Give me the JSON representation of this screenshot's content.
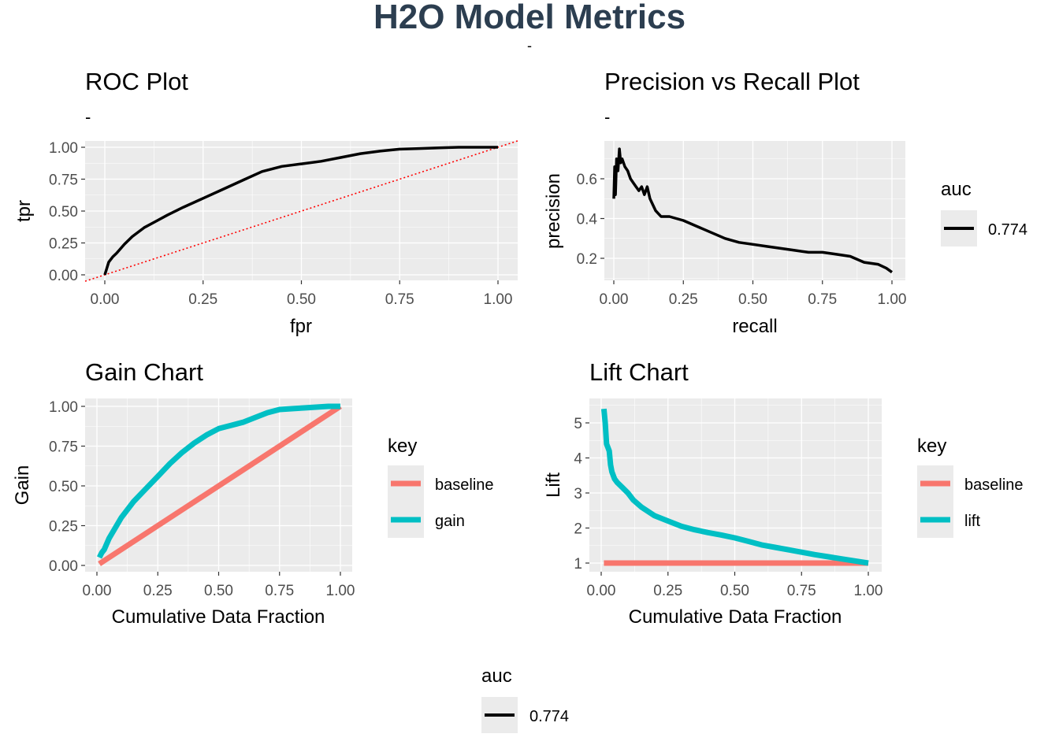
{
  "page": {
    "title": "H2O Model Metrics",
    "subtitle": "-",
    "title_color": "#2c3e50"
  },
  "colors": {
    "panel_bg": "#ebebeb",
    "grid": "#ffffff",
    "tick_text": "#4d4d4d",
    "roc_line": "#000000",
    "diag": "#ff0000",
    "baseline": "#f8766d",
    "gain": "#00bfc4"
  },
  "roc": {
    "title": "ROC Plot",
    "subtitle": "-",
    "xlabel": "fpr",
    "ylabel": "tpr",
    "xticks": [
      "0.00",
      "0.25",
      "0.50",
      "0.75",
      "1.00"
    ],
    "yticks": [
      "0.00",
      "0.25",
      "0.50",
      "0.75",
      "1.00"
    ]
  },
  "pr": {
    "title": "Precision vs Recall Plot",
    "subtitle": "-",
    "xlabel": "recall",
    "ylabel": "precision",
    "xticks": [
      "0.00",
      "0.25",
      "0.50",
      "0.75",
      "1.00"
    ],
    "yticks": [
      "0.2",
      "0.4",
      "0.6"
    ]
  },
  "gain_chart": {
    "title": "Gain Chart",
    "xlabel": "Cumulative Data Fraction",
    "ylabel": "Gain",
    "xticks": [
      "0.00",
      "0.25",
      "0.50",
      "0.75",
      "1.00"
    ],
    "yticks": [
      "0.00",
      "0.25",
      "0.50",
      "0.75",
      "1.00"
    ]
  },
  "lift_chart": {
    "title": "Lift Chart",
    "xlabel": "Cumulative Data Fraction",
    "ylabel": "Lift",
    "xticks": [
      "0.00",
      "0.25",
      "0.50",
      "0.75",
      "1.00"
    ],
    "yticks": [
      "1",
      "2",
      "3",
      "4",
      "5"
    ]
  },
  "legends": {
    "pr_auc": {
      "title": "auc",
      "value": "0.774"
    },
    "gain_key": {
      "title": "key",
      "items": [
        "baseline",
        "gain"
      ]
    },
    "lift_key": {
      "title": "key",
      "items": [
        "baseline",
        "lift"
      ]
    },
    "bottom_auc": {
      "title": "auc",
      "value": "0.774"
    }
  },
  "chart_data": [
    {
      "type": "line",
      "title": "ROC Plot",
      "xlabel": "fpr",
      "ylabel": "tpr",
      "xlim": [
        0,
        1
      ],
      "ylim": [
        0,
        1
      ],
      "series": [
        {
          "name": "0.774",
          "x": [
            0.0,
            0.005,
            0.01,
            0.02,
            0.03,
            0.05,
            0.07,
            0.1,
            0.13,
            0.16,
            0.2,
            0.25,
            0.3,
            0.35,
            0.4,
            0.45,
            0.5,
            0.55,
            0.6,
            0.65,
            0.7,
            0.75,
            0.8,
            0.85,
            0.9,
            0.95,
            1.0
          ],
          "y": [
            0.0,
            0.05,
            0.1,
            0.14,
            0.17,
            0.24,
            0.3,
            0.37,
            0.42,
            0.47,
            0.53,
            0.6,
            0.67,
            0.74,
            0.81,
            0.85,
            0.87,
            0.89,
            0.92,
            0.95,
            0.97,
            0.985,
            0.99,
            0.995,
            1.0,
            1.0,
            1.0
          ]
        }
      ],
      "reference_line": {
        "x": [
          0,
          1
        ],
        "y": [
          0,
          1
        ],
        "style": "dotted"
      }
    },
    {
      "type": "line",
      "title": "Precision vs Recall Plot",
      "xlabel": "recall",
      "ylabel": "precision",
      "xlim": [
        0,
        1
      ],
      "ylim": [
        0.13,
        0.75
      ],
      "legend_title": "auc",
      "series": [
        {
          "name": "0.774",
          "x": [
            0.0,
            0.003,
            0.006,
            0.01,
            0.015,
            0.02,
            0.025,
            0.03,
            0.04,
            0.05,
            0.06,
            0.07,
            0.08,
            0.09,
            0.1,
            0.11,
            0.12,
            0.13,
            0.14,
            0.15,
            0.17,
            0.2,
            0.25,
            0.3,
            0.35,
            0.4,
            0.45,
            0.5,
            0.55,
            0.6,
            0.65,
            0.7,
            0.75,
            0.8,
            0.85,
            0.9,
            0.95,
            0.98,
            1.0
          ],
          "y": [
            0.5,
            0.66,
            0.52,
            0.7,
            0.64,
            0.75,
            0.68,
            0.7,
            0.66,
            0.64,
            0.6,
            0.58,
            0.56,
            0.54,
            0.56,
            0.52,
            0.56,
            0.5,
            0.47,
            0.44,
            0.41,
            0.41,
            0.39,
            0.36,
            0.33,
            0.3,
            0.28,
            0.27,
            0.26,
            0.25,
            0.24,
            0.23,
            0.23,
            0.22,
            0.21,
            0.18,
            0.17,
            0.15,
            0.13
          ]
        }
      ]
    },
    {
      "type": "line",
      "title": "Gain Chart",
      "xlabel": "Cumulative Data Fraction",
      "ylabel": "Gain",
      "xlim": [
        0,
        1
      ],
      "ylim": [
        0,
        1
      ],
      "legend_title": "key",
      "series": [
        {
          "name": "baseline",
          "x": [
            0.01,
            1.0
          ],
          "y": [
            0.01,
            1.0
          ]
        },
        {
          "name": "gain",
          "x": [
            0.01,
            0.02,
            0.03,
            0.05,
            0.1,
            0.15,
            0.2,
            0.25,
            0.3,
            0.35,
            0.4,
            0.45,
            0.5,
            0.55,
            0.6,
            0.65,
            0.7,
            0.75,
            0.8,
            0.85,
            0.9,
            0.95,
            1.0
          ],
          "y": [
            0.05,
            0.08,
            0.1,
            0.17,
            0.3,
            0.4,
            0.48,
            0.56,
            0.64,
            0.71,
            0.77,
            0.82,
            0.86,
            0.88,
            0.9,
            0.93,
            0.96,
            0.98,
            0.985,
            0.99,
            0.995,
            1.0,
            1.0
          ]
        }
      ]
    },
    {
      "type": "line",
      "title": "Lift Chart",
      "xlabel": "Cumulative Data Fraction",
      "ylabel": "Lift",
      "xlim": [
        0,
        1
      ],
      "ylim": [
        0.85,
        5.6
      ],
      "legend_title": "key",
      "series": [
        {
          "name": "baseline",
          "x": [
            0.01,
            1.0
          ],
          "y": [
            1.0,
            1.0
          ]
        },
        {
          "name": "lift",
          "x": [
            0.01,
            0.015,
            0.02,
            0.025,
            0.03,
            0.035,
            0.04,
            0.05,
            0.06,
            0.08,
            0.1,
            0.12,
            0.15,
            0.2,
            0.25,
            0.3,
            0.35,
            0.4,
            0.45,
            0.5,
            0.55,
            0.6,
            0.65,
            0.7,
            0.75,
            0.8,
            0.85,
            0.9,
            0.95,
            1.0
          ],
          "y": [
            5.4,
            5.0,
            4.4,
            4.3,
            4.2,
            3.8,
            3.6,
            3.4,
            3.3,
            3.15,
            3.0,
            2.8,
            2.6,
            2.35,
            2.2,
            2.05,
            1.95,
            1.87,
            1.8,
            1.72,
            1.62,
            1.52,
            1.45,
            1.38,
            1.31,
            1.24,
            1.18,
            1.12,
            1.06,
            1.0
          ]
        }
      ]
    }
  ]
}
